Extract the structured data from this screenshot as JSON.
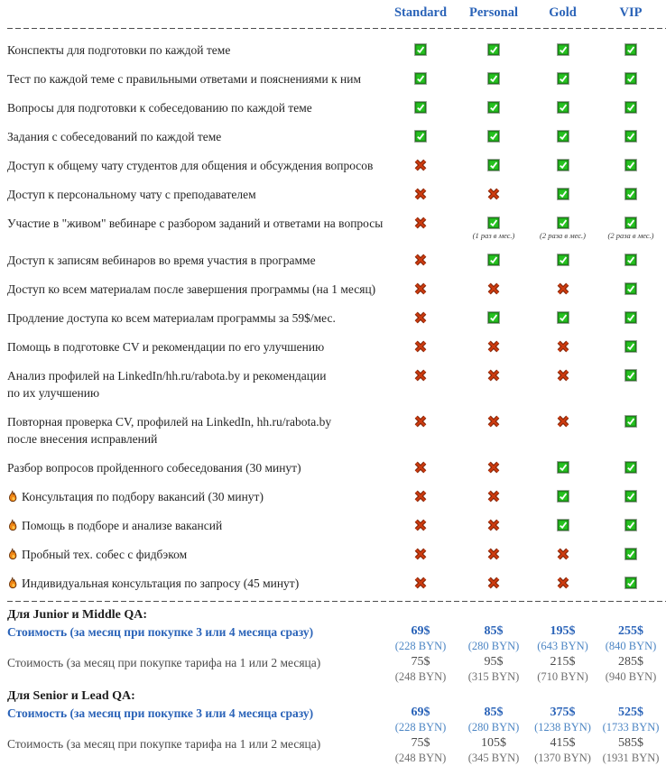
{
  "colors": {
    "accent_blue": "#2a63b8",
    "byn_blue": "#4d86c4",
    "check_green": "#25c21f",
    "cross_red": "#cd3b10",
    "flame_orange": "#f08514",
    "text_dark": "#242424",
    "text_gray": "#4a4a4a",
    "byn_gray": "#6e6e6e"
  },
  "plans": [
    "Standard",
    "Personal",
    "Gold",
    "VIP"
  ],
  "icons": {
    "yes": "check-icon",
    "no": "cross-icon",
    "fire": "flame-icon"
  },
  "features": [
    {
      "label": "Конспекты для подготовки по каждой теме",
      "fire": false,
      "values": [
        "yes",
        "yes",
        "yes",
        "yes"
      ],
      "notes": [
        "",
        "",
        "",
        ""
      ]
    },
    {
      "label": "Тест по каждой теме с правильными ответами и пояснениями к ним",
      "fire": false,
      "values": [
        "yes",
        "yes",
        "yes",
        "yes"
      ],
      "notes": [
        "",
        "",
        "",
        ""
      ]
    },
    {
      "label": "Вопросы для подготовки к собеседованию по каждой теме",
      "fire": false,
      "values": [
        "yes",
        "yes",
        "yes",
        "yes"
      ],
      "notes": [
        "",
        "",
        "",
        ""
      ]
    },
    {
      "label": "Задания с собеседований по каждой теме",
      "fire": false,
      "values": [
        "yes",
        "yes",
        "yes",
        "yes"
      ],
      "notes": [
        "",
        "",
        "",
        ""
      ]
    },
    {
      "label": "Доступ к общему чату студентов для общения и обсуждения вопросов",
      "fire": false,
      "values": [
        "no",
        "yes",
        "yes",
        "yes"
      ],
      "notes": [
        "",
        "",
        "",
        ""
      ]
    },
    {
      "label": "Доступ к персональному чату с преподавателем",
      "fire": false,
      "values": [
        "no",
        "no",
        "yes",
        "yes"
      ],
      "notes": [
        "",
        "",
        "",
        ""
      ]
    },
    {
      "label": "Участие в \"живом\" вебинаре с разбором заданий и ответами на вопросы",
      "fire": false,
      "values": [
        "no",
        "yes",
        "yes",
        "yes"
      ],
      "notes": [
        "",
        "(1 раз в мес.)",
        "(2 раза в мес.)",
        "(2 раза в мес.)"
      ]
    },
    {
      "label": "Доступ к записям вебинаров во время участия в программе",
      "fire": false,
      "values": [
        "no",
        "yes",
        "yes",
        "yes"
      ],
      "notes": [
        "",
        "",
        "",
        ""
      ]
    },
    {
      "label": "Доступ ко всем материалам после завершения программы (на 1 месяц)",
      "fire": false,
      "values": [
        "no",
        "no",
        "no",
        "yes"
      ],
      "notes": [
        "",
        "",
        "",
        ""
      ]
    },
    {
      "label": "Продление доступа ко всем материалам программы  за 59$/мес.",
      "fire": false,
      "values": [
        "no",
        "yes",
        "yes",
        "yes"
      ],
      "notes": [
        "",
        "",
        "",
        ""
      ]
    },
    {
      "label": "Помощь в подготовке CV и рекомендации по его улучшению",
      "fire": false,
      "values": [
        "no",
        "no",
        "no",
        "yes"
      ],
      "notes": [
        "",
        "",
        "",
        ""
      ]
    },
    {
      "label": "Анализ профилей на LinkedIn/hh.ru/rabota.by и рекомендации\nпо их улучшению",
      "fire": false,
      "values": [
        "no",
        "no",
        "no",
        "yes"
      ],
      "notes": [
        "",
        "",
        "",
        ""
      ]
    },
    {
      "label": "Повторная проверка CV, профилей на LinkedIn, hh.ru/rabota.by\nпосле внесения исправлений",
      "fire": false,
      "values": [
        "no",
        "no",
        "no",
        "yes"
      ],
      "notes": [
        "",
        "",
        "",
        ""
      ]
    },
    {
      "label": "Разбор вопросов пройденного собеседования (30 минут)",
      "fire": false,
      "values": [
        "no",
        "no",
        "yes",
        "yes"
      ],
      "notes": [
        "",
        "",
        "",
        ""
      ]
    },
    {
      "label": "Консультация по подбору вакансий (30 минут)",
      "fire": true,
      "values": [
        "no",
        "no",
        "yes",
        "yes"
      ],
      "notes": [
        "",
        "",
        "",
        ""
      ]
    },
    {
      "label": "Помощь в подборе и анализе вакансий",
      "fire": true,
      "values": [
        "no",
        "no",
        "yes",
        "yes"
      ],
      "notes": [
        "",
        "",
        "",
        ""
      ]
    },
    {
      "label": "Пробный тех. собес с фидбэком",
      "fire": true,
      "values": [
        "no",
        "no",
        "no",
        "yes"
      ],
      "notes": [
        "",
        "",
        "",
        ""
      ]
    },
    {
      "label": "Индивидуальная консультация по запросу (45 минут)",
      "fire": true,
      "values": [
        "no",
        "no",
        "no",
        "yes"
      ],
      "notes": [
        "",
        "",
        "",
        ""
      ]
    }
  ],
  "pricing_sections": [
    {
      "title": "Для Junior и Middle QA:",
      "rows": [
        {
          "style": "primary",
          "label": "Стоимость (за месяц при покупке 3 или 4 месяца сразу)",
          "usd": [
            "69$",
            "85$",
            "195$",
            "255$"
          ],
          "byn": [
            "(228 BYN)",
            "(280 BYN)",
            "(643 BYN)",
            "(840 BYN)"
          ]
        },
        {
          "style": "secondary",
          "label": "Стоимость (за месяц при покупке тарифа на 1 или 2 месяца)",
          "usd": [
            "75$",
            "95$",
            "215$",
            "285$"
          ],
          "byn": [
            "(248 BYN)",
            "(315 BYN)",
            "(710 BYN)",
            "(940 BYN)"
          ]
        }
      ]
    },
    {
      "title": "Для Senior и Lead QA:",
      "rows": [
        {
          "style": "primary",
          "label": "Стоимость (за месяц при покупке 3 или 4 месяца сразу)",
          "usd": [
            "69$",
            "85$",
            "375$",
            "525$"
          ],
          "byn": [
            "(228 BYN)",
            "(280 BYN)",
            "(1238 BYN)",
            "(1733 BYN)"
          ]
        },
        {
          "style": "secondary",
          "label": "Стоимость (за месяц при покупке тарифа на 1 или 2 месяца)",
          "usd": [
            "75$",
            "105$",
            "415$",
            "585$"
          ],
          "byn": [
            "(248 BYN)",
            "(345 BYN)",
            "(1370 BYN)",
            "(1931 BYN)"
          ]
        }
      ]
    }
  ]
}
